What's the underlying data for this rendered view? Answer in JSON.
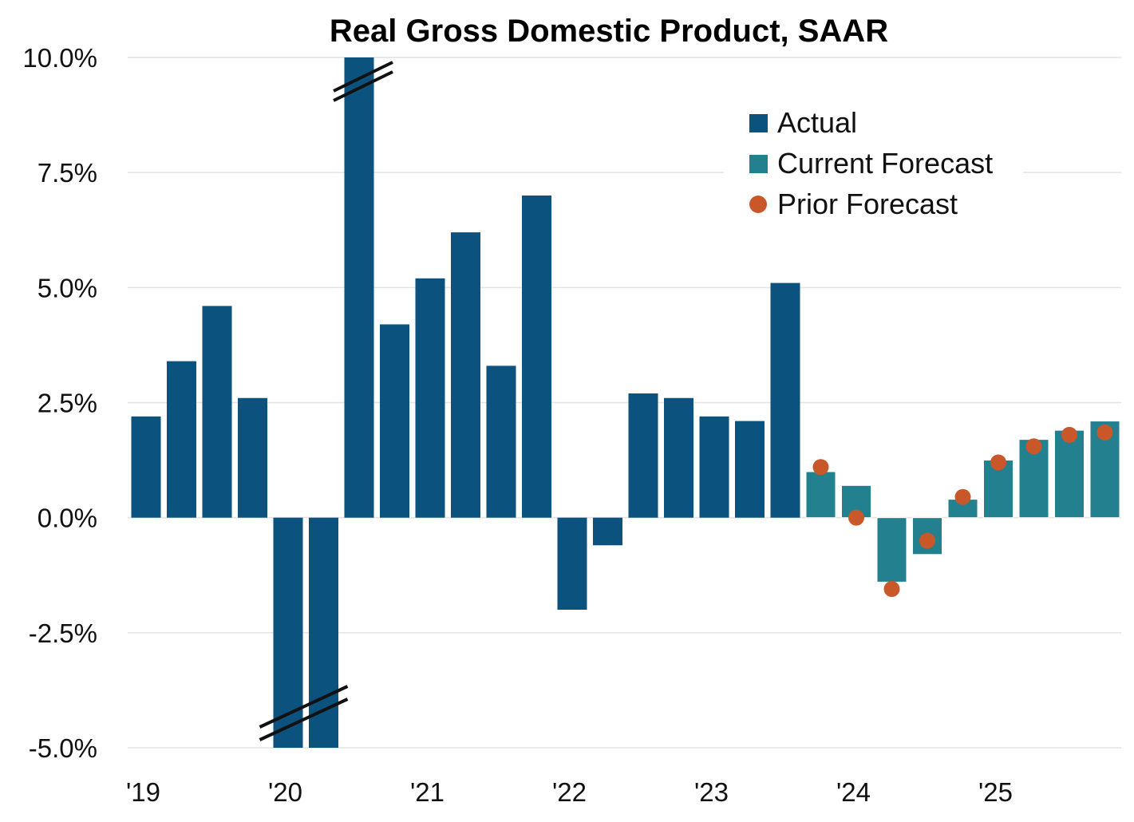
{
  "chart_data": {
    "type": "bar",
    "title": "Real Gross Domestic Product, SAAR",
    "xlabel": "",
    "ylabel": "",
    "ylim": [
      -5,
      10
    ],
    "yticks": [
      10,
      7.5,
      5,
      2.5,
      0,
      -2.5,
      -5
    ],
    "ytick_labels": [
      "10.0%",
      "7.5%",
      "5.0%",
      "2.5%",
      "0.0%",
      "-2.5%",
      "-5.0%"
    ],
    "xtick_labels": [
      "'19",
      "'20",
      "'21",
      "'22",
      "'23",
      "'24",
      "'25"
    ],
    "grid": "horizontal",
    "legend_placement": "top-right",
    "categories": [
      "2019Q1",
      "2019Q2",
      "2019Q3",
      "2019Q4",
      "2020Q1",
      "2020Q2",
      "2020Q3",
      "2020Q4",
      "2021Q1",
      "2021Q2",
      "2021Q3",
      "2021Q4",
      "2022Q1",
      "2022Q2",
      "2022Q3",
      "2022Q4",
      "2023Q1",
      "2023Q2",
      "2023Q3",
      "2023Q4",
      "2024Q1",
      "2024Q2",
      "2024Q3",
      "2024Q4",
      "2025Q1",
      "2025Q2",
      "2025Q3",
      "2025Q4"
    ],
    "axis_breaks": [
      "2020Q2",
      "2020Q3"
    ],
    "series": [
      {
        "name": "Actual",
        "type": "bar",
        "color": "#0b527e",
        "values": [
          2.2,
          3.4,
          4.6,
          2.6,
          -5.0,
          -5.0,
          10.0,
          4.2,
          5.2,
          6.2,
          3.3,
          7.0,
          -2.0,
          -0.6,
          2.7,
          2.6,
          2.2,
          2.1,
          5.1,
          null,
          null,
          null,
          null,
          null,
          null,
          null,
          null,
          null
        ]
      },
      {
        "name": "Current Forecast",
        "type": "bar",
        "color": "#23808f",
        "values": [
          null,
          null,
          null,
          null,
          null,
          null,
          null,
          null,
          null,
          null,
          null,
          null,
          null,
          null,
          null,
          null,
          null,
          null,
          null,
          1.0,
          0.7,
          -1.4,
          -0.8,
          0.4,
          1.25,
          1.7,
          1.9,
          2.1
        ]
      },
      {
        "name": "Prior Forecast",
        "type": "scatter",
        "color": "#c8582a",
        "values": [
          null,
          null,
          null,
          null,
          null,
          null,
          null,
          null,
          null,
          null,
          null,
          null,
          null,
          null,
          null,
          null,
          null,
          null,
          null,
          1.1,
          0.0,
          -1.55,
          -0.5,
          0.45,
          1.2,
          1.55,
          1.8,
          1.85
        ]
      }
    ]
  }
}
